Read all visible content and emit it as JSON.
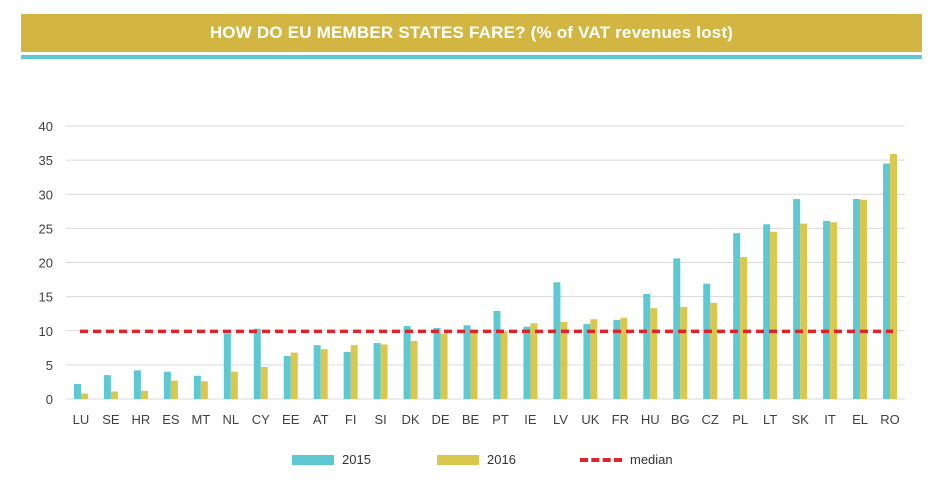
{
  "title": "HOW DO EU MEMBER STATES FARE? (% of VAT revenues lost)",
  "colors": {
    "title_bg": "#d3b641",
    "rule": "#5fc9d3",
    "series_2015": "#5fc9d3",
    "series_2016": "#d9c74e",
    "median": "#e0222a",
    "grid": "#d9d9d9",
    "axis_text": "#404040"
  },
  "legend": {
    "s2015": "2015",
    "s2016": "2016",
    "median": "median"
  },
  "chart_data": {
    "type": "bar",
    "categories": [
      "LU",
      "SE",
      "HR",
      "ES",
      "MT",
      "NL",
      "CY",
      "EE",
      "AT",
      "FI",
      "SI",
      "DK",
      "DE",
      "BE",
      "PT",
      "IE",
      "LV",
      "UK",
      "FR",
      "HU",
      "BG",
      "CZ",
      "PL",
      "LT",
      "SK",
      "IT",
      "EL",
      "RO"
    ],
    "series": [
      {
        "name": "2015",
        "values": [
          2.2,
          3.5,
          4.2,
          4.0,
          3.4,
          9.6,
          10.3,
          6.3,
          7.9,
          6.9,
          8.2,
          10.7,
          10.4,
          10.8,
          12.9,
          10.6,
          17.1,
          11.0,
          11.6,
          15.4,
          20.6,
          16.9,
          24.3,
          25.6,
          29.3,
          26.1,
          29.3,
          34.5
        ]
      },
      {
        "name": "2016",
        "values": [
          0.8,
          1.1,
          1.2,
          2.7,
          2.6,
          4.0,
          4.7,
          6.8,
          7.3,
          7.9,
          8.0,
          8.5,
          9.6,
          9.9,
          9.9,
          11.1,
          11.3,
          11.7,
          11.9,
          13.3,
          13.5,
          14.1,
          20.8,
          24.5,
          25.7,
          25.9,
          29.2,
          35.9
        ]
      }
    ],
    "median": 9.9,
    "ylim": [
      0,
      40
    ],
    "yticks": [
      0,
      5,
      10,
      15,
      20,
      25,
      30,
      35,
      40
    ],
    "grid": true,
    "legend_position": "bottom"
  }
}
